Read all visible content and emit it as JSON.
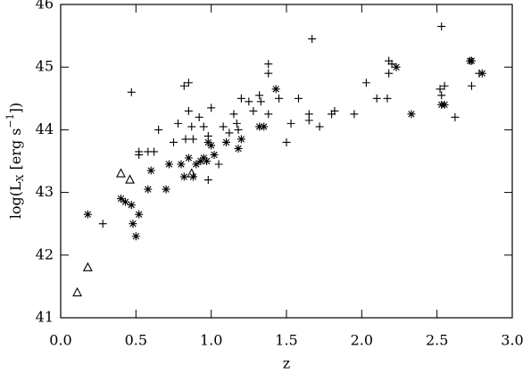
{
  "chart_data": {
    "type": "scatter",
    "xlabel": "z",
    "ylabel": [
      "log(L",
      "X",
      " [erg s",
      "−1",
      "])"
    ],
    "xlim": [
      0,
      3
    ],
    "ylim": [
      41,
      46
    ],
    "xticks": [
      {
        "value": 0,
        "label": "0.0"
      },
      0.5,
      {
        "value": 1,
        "label": "1.0"
      },
      1.5,
      {
        "value": 2,
        "label": "2.0"
      },
      2.5,
      {
        "value": 3,
        "label": "3.0"
      }
    ],
    "yticks": [
      41,
      42,
      43,
      44,
      45,
      46
    ],
    "series": [
      {
        "marker": "plus",
        "color": "#000000",
        "x": [
          0.28,
          0.47,
          0.52,
          0.52,
          0.58,
          0.62,
          0.65,
          0.75,
          0.78,
          0.82,
          0.85,
          0.85,
          0.87,
          0.83,
          0.88,
          0.92,
          0.95,
          0.98,
          0.98,
          1.0,
          1.05,
          1.08,
          1.12,
          1.15,
          1.17,
          1.18,
          1.2,
          1.25,
          1.28,
          1.32,
          1.33,
          1.38,
          1.38,
          1.38,
          1.45,
          1.5,
          1.53,
          1.58,
          1.65,
          1.65,
          1.67,
          1.72,
          1.8,
          1.82,
          1.95,
          2.03,
          2.1,
          2.17,
          2.18,
          2.18,
          2.2,
          2.52,
          2.53,
          2.53,
          2.55,
          2.62,
          2.73,
          2.78
        ],
        "values": [
          42.5,
          44.6,
          43.6,
          43.65,
          43.65,
          43.65,
          44.0,
          43.8,
          44.1,
          44.7,
          44.75,
          44.3,
          44.05,
          43.85,
          43.85,
          44.2,
          44.05,
          43.9,
          43.2,
          44.35,
          43.45,
          44.05,
          43.95,
          44.25,
          44.1,
          44.0,
          44.5,
          44.45,
          44.3,
          44.55,
          44.45,
          44.25,
          45.05,
          44.9,
          44.5,
          43.8,
          44.1,
          44.5,
          44.15,
          44.25,
          45.45,
          44.05,
          44.25,
          44.3,
          44.25,
          44.75,
          44.5,
          44.5,
          45.1,
          44.9,
          45.05,
          44.65,
          45.65,
          44.55,
          44.7,
          44.2,
          44.7,
          44.9
        ]
      },
      {
        "marker": "asterisk",
        "color": "#000000",
        "x": [
          0.18,
          0.4,
          0.43,
          0.47,
          0.48,
          0.5,
          0.52,
          0.58,
          0.6,
          0.7,
          0.72,
          0.8,
          0.82,
          0.85,
          0.88,
          0.9,
          0.93,
          0.95,
          0.97,
          0.98,
          1.0,
          1.02,
          1.1,
          1.18,
          1.2,
          1.32,
          1.35,
          1.43,
          2.23,
          2.33,
          2.53,
          2.55,
          2.72,
          2.73,
          2.8
        ],
        "values": [
          42.65,
          42.9,
          42.85,
          42.8,
          42.5,
          42.3,
          42.65,
          43.05,
          43.35,
          43.05,
          43.45,
          43.45,
          43.25,
          43.55,
          43.25,
          43.45,
          43.5,
          43.55,
          43.5,
          43.8,
          43.75,
          43.6,
          43.8,
          43.7,
          43.85,
          44.05,
          44.05,
          44.65,
          45.0,
          44.25,
          44.4,
          44.4,
          45.1,
          45.1,
          44.9
        ]
      },
      {
        "marker": "triangle",
        "color": "#000000",
        "x": [
          0.11,
          0.18,
          0.4,
          0.46,
          0.87
        ],
        "values": [
          41.4,
          41.8,
          43.3,
          43.2,
          43.3
        ]
      }
    ]
  }
}
